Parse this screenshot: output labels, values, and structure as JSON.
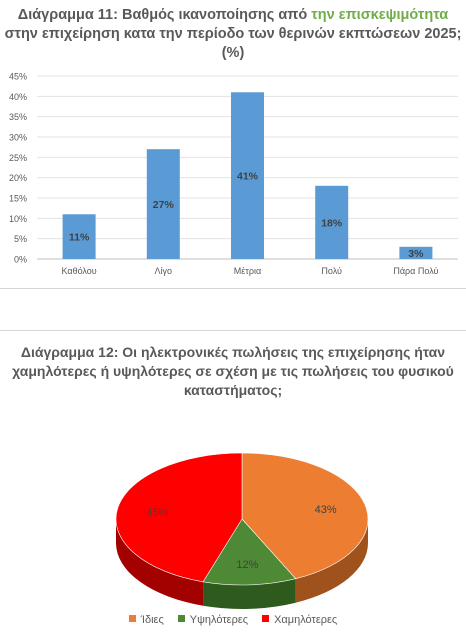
{
  "charts": {
    "bar": {
      "title_parts": [
        {
          "text": "Διάγραμμα 11: Βαθμός ικανοποίησης από ",
          "hl": false
        },
        {
          "text": "την επισκεψιμότητα",
          "hl": true
        },
        {
          "text": " στην επιχείρηση κατα την περίοδο των θερινών εκπτώσεων 2025; (%)",
          "hl": false
        }
      ],
      "highlight_color": "#70ad47"
    },
    "pie": {
      "title": "Διάγραμμα 12: Οι ηλεκτρονικές πωλήσεις της επιχείρησης ήταν χαμηλότερες ή υψηλότερες σε σχέση με τις πωλήσεις του φυσικού καταστήματος;"
    }
  },
  "chart_data": [
    {
      "type": "bar",
      "title": "Διάγραμμα 11: Βαθμός ικανοποίησης από την επισκεψιμότητα στην επιχείρηση κατα την περίοδο των θερινών εκπτώσεων 2025; (%)",
      "categories": [
        "Καθόλου",
        "Λίγο",
        "Μέτρια",
        "Πολύ",
        "Πάρα Πολύ"
      ],
      "values": [
        11,
        27,
        41,
        18,
        3
      ],
      "data_labels": [
        "11%",
        "27%",
        "41%",
        "18%",
        "3%"
      ],
      "yticks": [
        "0%",
        "5%",
        "10%",
        "15%",
        "20%",
        "25%",
        "30%",
        "35%",
        "40%",
        "45%"
      ],
      "ylim": [
        0,
        45
      ],
      "grid": true,
      "bar_color": "#5b9bd5",
      "label_color": "#404040"
    },
    {
      "type": "pie",
      "title": "Διάγραμμα 12: Οι ηλεκτρονικές πωλήσεις της επιχείρησης ήταν χαμηλότερες ή υψηλότερες σε σχέση με τις πωλήσεις του φυσικού καταστήματος;",
      "slices": [
        {
          "label": "Ίδιες",
          "value": 43,
          "data_label": "43%",
          "color": "#ed7d31",
          "side_color": "#a0521c"
        },
        {
          "label": "Υψηλότερες",
          "value": 12,
          "data_label": "12%",
          "color": "#4e8a36",
          "side_color": "#2f5a1e"
        },
        {
          "label": "Χαμηλότερες",
          "value": 45,
          "data_label": "45%",
          "color": "#ff0000",
          "side_color": "#a30000"
        }
      ],
      "style": "3d",
      "legend_position": "bottom"
    }
  ]
}
